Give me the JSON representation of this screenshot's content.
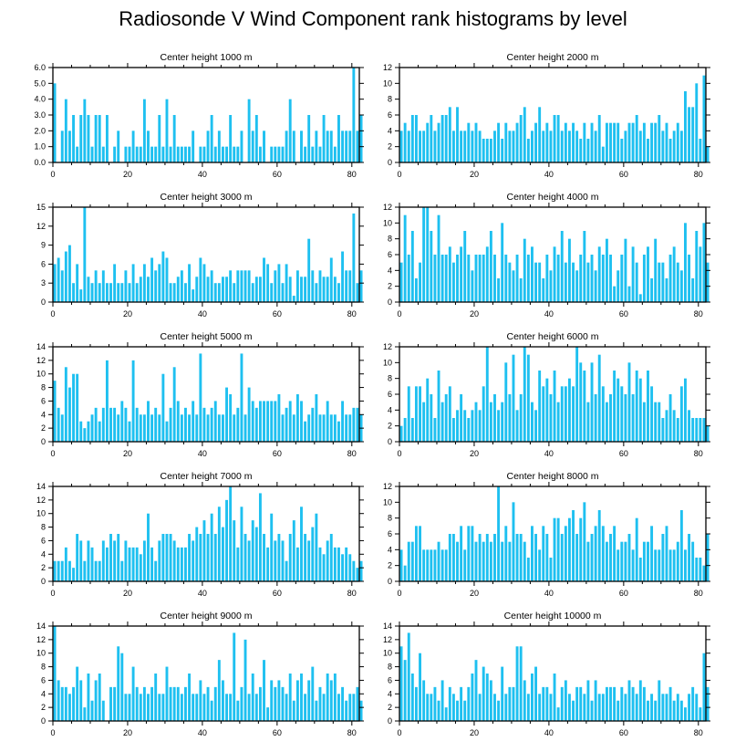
{
  "figure": {
    "title": "Radiosonde V Wind Component rank histograms by level",
    "bar_color": "#1EC0F0",
    "axis_color": "#000000"
  },
  "chart_data": [
    {
      "type": "bar",
      "title": "Center height 1000 m",
      "xlim": [
        0,
        82
      ],
      "ylim": [
        0,
        6
      ],
      "xticks": [
        0,
        20,
        40,
        60,
        80
      ],
      "yticks": [
        0,
        1,
        2,
        3,
        4,
        5,
        6
      ],
      "ytick_labels": [
        "0.0",
        "1.0",
        "2.0",
        "3.0",
        "4.0",
        "5.0",
        "6.0"
      ],
      "values": [
        5,
        0,
        2,
        4,
        2,
        3,
        1,
        3,
        4,
        3,
        1,
        3,
        3,
        1,
        3,
        0,
        1,
        2,
        0,
        1,
        1,
        2,
        1,
        1,
        4,
        2,
        1,
        1,
        3,
        1,
        4,
        1,
        3,
        1,
        1,
        1,
        1,
        2,
        0,
        1,
        1,
        2,
        3,
        1,
        2,
        1,
        1,
        3,
        1,
        1,
        2,
        0,
        4,
        2,
        3,
        1,
        2,
        0,
        1,
        1,
        1,
        1,
        2,
        4,
        2,
        0,
        2,
        1,
        3,
        1,
        2,
        1,
        3,
        2,
        2,
        1,
        3,
        2,
        2,
        2,
        6,
        2,
        3
      ]
    },
    {
      "type": "bar",
      "title": "Center height 2000 m",
      "xlim": [
        0,
        82
      ],
      "ylim": [
        0,
        12
      ],
      "xticks": [
        0,
        20,
        40,
        60,
        80
      ],
      "yticks": [
        0,
        2,
        4,
        6,
        8,
        10,
        12
      ],
      "ytick_labels": [
        "0",
        "2",
        "4",
        "6",
        "8",
        "10",
        "12"
      ],
      "values": [
        4,
        5,
        4,
        6,
        6,
        4,
        4,
        5,
        6,
        4,
        5,
        6,
        6,
        7,
        4,
        7,
        4,
        4,
        5,
        4,
        5,
        4,
        3,
        3,
        3,
        4,
        5,
        3,
        5,
        4,
        4,
        5,
        6,
        7,
        3,
        4,
        5,
        7,
        4,
        5,
        4,
        6,
        6,
        4,
        5,
        4,
        5,
        4,
        3,
        5,
        3,
        5,
        4,
        6,
        2,
        5,
        5,
        5,
        5,
        3,
        4,
        5,
        5,
        6,
        4,
        5,
        3,
        5,
        5,
        6,
        4,
        5,
        3,
        4,
        5,
        4,
        9,
        7,
        7,
        10,
        3,
        11,
        2
      ]
    },
    {
      "type": "bar",
      "title": "Center height 3000 m",
      "xlim": [
        0,
        82
      ],
      "ylim": [
        0,
        15
      ],
      "xticks": [
        0,
        20,
        40,
        60,
        80
      ],
      "yticks": [
        0,
        3,
        6,
        9,
        12,
        15
      ],
      "ytick_labels": [
        "0",
        "3",
        "6",
        "9",
        "12",
        "15"
      ],
      "values": [
        6,
        7,
        5,
        8,
        9,
        3,
        6,
        2,
        15,
        4,
        3,
        5,
        3,
        5,
        3,
        3,
        6,
        3,
        3,
        5,
        3,
        6,
        3,
        4,
        6,
        4,
        7,
        5,
        6,
        8,
        7,
        3,
        3,
        4,
        5,
        3,
        6,
        2,
        4,
        7,
        6,
        4,
        5,
        3,
        3,
        4,
        4,
        5,
        3,
        5,
        5,
        5,
        5,
        3,
        4,
        4,
        7,
        6,
        3,
        5,
        6,
        3,
        6,
        4,
        1,
        5,
        4,
        4,
        10,
        5,
        3,
        5,
        4,
        4,
        7,
        4,
        3,
        8,
        5,
        5,
        14,
        3,
        5
      ]
    },
    {
      "type": "bar",
      "title": "Center height 4000 m",
      "xlim": [
        0,
        82
      ],
      "ylim": [
        0,
        12
      ],
      "xticks": [
        0,
        20,
        40,
        60,
        80
      ],
      "yticks": [
        0,
        2,
        4,
        6,
        8,
        10,
        12
      ],
      "ytick_labels": [
        "0",
        "2",
        "4",
        "6",
        "8",
        "10",
        "12"
      ],
      "values": [
        5,
        11,
        6,
        9,
        3,
        5,
        12,
        12,
        9,
        6,
        11,
        6,
        6,
        7,
        5,
        6,
        7,
        9,
        6,
        4,
        6,
        6,
        6,
        7,
        9,
        6,
        3,
        10,
        6,
        5,
        4,
        6,
        3,
        8,
        6,
        7,
        5,
        5,
        3,
        6,
        4,
        7,
        6,
        9,
        5,
        8,
        5,
        4,
        6,
        9,
        5,
        6,
        4,
        7,
        6,
        8,
        6,
        2,
        4,
        6,
        8,
        2,
        7,
        5,
        1,
        6,
        7,
        3,
        8,
        5,
        5,
        3,
        6,
        7,
        5,
        4,
        10,
        6,
        3,
        9,
        7,
        10,
        5
      ]
    },
    {
      "type": "bar",
      "title": "Center height 5000 m",
      "xlim": [
        0,
        82
      ],
      "ylim": [
        0,
        14
      ],
      "xticks": [
        0,
        20,
        40,
        60,
        80
      ],
      "yticks": [
        0,
        2,
        4,
        6,
        8,
        10,
        12,
        14
      ],
      "ytick_labels": [
        "0",
        "2",
        "4",
        "6",
        "8",
        "10",
        "12",
        "14"
      ],
      "values": [
        9,
        5,
        4,
        11,
        8,
        10,
        10,
        3,
        2,
        3,
        4,
        5,
        3,
        5,
        12,
        5,
        5,
        4,
        6,
        5,
        3,
        12,
        5,
        4,
        4,
        6,
        4,
        5,
        4,
        10,
        3,
        5,
        11,
        6,
        4,
        5,
        4,
        6,
        4,
        13,
        5,
        4,
        5,
        6,
        4,
        4,
        8,
        7,
        4,
        5,
        13,
        4,
        8,
        6,
        5,
        6,
        6,
        6,
        6,
        6,
        7,
        4,
        5,
        6,
        4,
        7,
        6,
        3,
        4,
        5,
        7,
        4,
        4,
        6,
        4,
        4,
        3,
        6,
        4,
        4,
        5,
        5,
        4
      ]
    },
    {
      "type": "bar",
      "title": "Center height 6000 m",
      "xlim": [
        0,
        82
      ],
      "ylim": [
        0,
        12
      ],
      "xticks": [
        0,
        20,
        40,
        60,
        80
      ],
      "yticks": [
        0,
        2,
        4,
        6,
        8,
        10,
        12
      ],
      "ytick_labels": [
        "0",
        "2",
        "4",
        "6",
        "8",
        "10",
        "12"
      ],
      "values": [
        2,
        3,
        7,
        3,
        7,
        7,
        5,
        8,
        6,
        3,
        9,
        5,
        6,
        7,
        3,
        4,
        6,
        4,
        3,
        4,
        5,
        4,
        7,
        12,
        5,
        6,
        4,
        5,
        10,
        6,
        11,
        4,
        6,
        12,
        11,
        5,
        4,
        9,
        7,
        8,
        6,
        9,
        5,
        7,
        7,
        8,
        7,
        12,
        10,
        9,
        5,
        10,
        6,
        11,
        7,
        5,
        6,
        9,
        8,
        7,
        6,
        10,
        6,
        9,
        8,
        5,
        9,
        7,
        5,
        5,
        3,
        4,
        6,
        4,
        3,
        7,
        8,
        4,
        3,
        3,
        3,
        3,
        2
      ]
    },
    {
      "type": "bar",
      "title": "Center height 7000 m",
      "xlim": [
        0,
        82
      ],
      "ylim": [
        0,
        14
      ],
      "xticks": [
        0,
        20,
        40,
        60,
        80
      ],
      "yticks": [
        0,
        2,
        4,
        6,
        8,
        10,
        12,
        14
      ],
      "ytick_labels": [
        "0",
        "2",
        "4",
        "6",
        "8",
        "10",
        "12",
        "14"
      ],
      "values": [
        3,
        3,
        3,
        5,
        3,
        2,
        7,
        6,
        3,
        6,
        5,
        3,
        3,
        6,
        5,
        7,
        6,
        7,
        3,
        6,
        5,
        5,
        5,
        4,
        6,
        10,
        5,
        3,
        6,
        7,
        7,
        7,
        6,
        5,
        5,
        5,
        7,
        6,
        8,
        7,
        9,
        7,
        10,
        7,
        11,
        8,
        12,
        14,
        9,
        5,
        11,
        7,
        6,
        9,
        8,
        13,
        7,
        5,
        10,
        6,
        7,
        6,
        3,
        7,
        9,
        5,
        11,
        7,
        6,
        8,
        10,
        5,
        4,
        6,
        7,
        5,
        5,
        4,
        5,
        4,
        3,
        2,
        3
      ]
    },
    {
      "type": "bar",
      "title": "Center height 8000 m",
      "xlim": [
        0,
        82
      ],
      "ylim": [
        0,
        12
      ],
      "xticks": [
        0,
        20,
        40,
        60,
        80
      ],
      "yticks": [
        0,
        2,
        4,
        6,
        8,
        10,
        12
      ],
      "ytick_labels": [
        "0",
        "2",
        "4",
        "6",
        "8",
        "10",
        "12"
      ],
      "values": [
        4,
        2,
        5,
        5,
        7,
        7,
        4,
        4,
        4,
        4,
        5,
        4,
        4,
        6,
        6,
        5,
        7,
        4,
        7,
        7,
        5,
        6,
        5,
        6,
        5,
        6,
        12,
        5,
        7,
        5,
        10,
        6,
        6,
        5,
        3,
        7,
        6,
        4,
        7,
        6,
        3,
        8,
        8,
        6,
        7,
        8,
        9,
        6,
        8,
        10,
        5,
        6,
        7,
        9,
        7,
        5,
        6,
        7,
        4,
        5,
        5,
        6,
        4,
        8,
        3,
        5,
        5,
        7,
        4,
        4,
        6,
        7,
        4,
        4,
        5,
        9,
        4,
        6,
        5,
        3,
        3,
        2,
        6
      ]
    },
    {
      "type": "bar",
      "title": "Center height 9000 m",
      "xlim": [
        0,
        82
      ],
      "ylim": [
        0,
        14
      ],
      "xticks": [
        0,
        20,
        40,
        60,
        80
      ],
      "yticks": [
        0,
        2,
        4,
        6,
        8,
        10,
        12,
        14
      ],
      "ytick_labels": [
        "0",
        "2",
        "4",
        "6",
        "8",
        "10",
        "12",
        "14"
      ],
      "values": [
        14,
        6,
        5,
        5,
        4,
        5,
        8,
        6,
        2,
        7,
        3,
        6,
        7,
        3,
        0,
        5,
        5,
        11,
        10,
        4,
        4,
        8,
        5,
        4,
        5,
        4,
        5,
        7,
        4,
        4,
        8,
        5,
        5,
        5,
        4,
        5,
        7,
        4,
        4,
        6,
        4,
        5,
        3,
        5,
        9,
        6,
        4,
        4,
        13,
        3,
        5,
        12,
        4,
        7,
        4,
        5,
        9,
        2,
        6,
        5,
        6,
        5,
        4,
        7,
        3,
        6,
        7,
        4,
        6,
        8,
        3,
        5,
        4,
        7,
        6,
        7,
        4,
        5,
        3,
        4,
        4,
        5,
        3
      ]
    },
    {
      "type": "bar",
      "title": "Center height 10000 m",
      "xlim": [
        0,
        82
      ],
      "ylim": [
        0,
        14
      ],
      "xticks": [
        0,
        20,
        40,
        60,
        80
      ],
      "yticks": [
        0,
        2,
        4,
        6,
        8,
        10,
        12,
        14
      ],
      "ytick_labels": [
        "0",
        "2",
        "4",
        "6",
        "8",
        "10",
        "12",
        "14"
      ],
      "values": [
        11,
        9,
        13,
        7,
        5,
        10,
        6,
        4,
        4,
        5,
        3,
        6,
        2,
        5,
        4,
        3,
        5,
        3,
        5,
        7,
        9,
        4,
        8,
        7,
        6,
        4,
        3,
        8,
        4,
        5,
        5,
        11,
        11,
        6,
        4,
        7,
        8,
        4,
        5,
        5,
        4,
        7,
        2,
        5,
        6,
        4,
        3,
        5,
        5,
        4,
        6,
        3,
        6,
        4,
        4,
        5,
        5,
        5,
        3,
        5,
        4,
        6,
        5,
        4,
        6,
        5,
        3,
        4,
        3,
        6,
        4,
        4,
        5,
        3,
        4,
        3,
        2,
        4,
        5,
        4,
        2,
        10,
        5
      ]
    }
  ]
}
